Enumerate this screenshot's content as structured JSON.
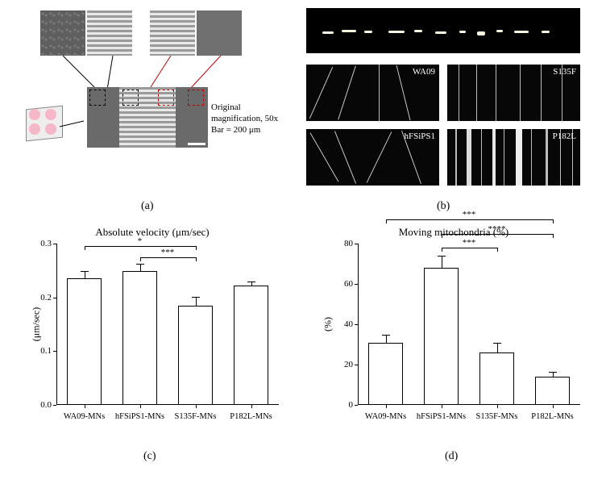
{
  "panel_a": {
    "caption": "(a)",
    "magnification_text_l1": "Original magnification, 50x",
    "magnification_text_l2": "Bar = 200 μm"
  },
  "panel_b": {
    "caption": "(b)",
    "kymo_labels": {
      "tl": "WA09",
      "tr": "S135F",
      "bl": "hFSiPS1",
      "br": "P182L"
    }
  },
  "chart_c": {
    "caption": "(c)",
    "title": "Absolute velocity (μm/sec)",
    "y_title": "(μm/sec)",
    "ylim": [
      0,
      0.3
    ],
    "ytick_step": 0.1,
    "categories": [
      "WA09-MNs",
      "hFSiPS1-MNs",
      "S135F-MNs",
      "P182L-MNs"
    ],
    "values": [
      0.235,
      0.249,
      0.185,
      0.222
    ],
    "errors": [
      0.014,
      0.013,
      0.016,
      0.008
    ],
    "bar_fill": "#ffffff",
    "bar_stroke": "#000000",
    "sig": [
      {
        "from": 0,
        "to": 2,
        "level": 0.295,
        "stars": "*"
      },
      {
        "from": 1,
        "to": 2,
        "level": 0.275,
        "stars": "***"
      }
    ]
  },
  "chart_d": {
    "caption": "(d)",
    "title": "Moving mitochondria (%)",
    "y_title": "(%)",
    "ylim": [
      0,
      80
    ],
    "ytick_step": 20,
    "categories": [
      "WA09-MNs",
      "hFSiPS1-MNs",
      "S135F-MNs",
      "P182L-MNs"
    ],
    "values": [
      31,
      68,
      26,
      14
    ],
    "errors": [
      4,
      6,
      5,
      2.5
    ],
    "bar_fill": "#ffffff",
    "bar_stroke": "#000000",
    "sig": [
      {
        "from": 0,
        "to": 3,
        "level": 92,
        "stars": "***"
      },
      {
        "from": 1,
        "to": 3,
        "level": 85,
        "stars": "****"
      },
      {
        "from": 1,
        "to": 2,
        "level": 78,
        "stars": "***"
      }
    ]
  },
  "colors": {
    "background": "#ffffff",
    "axis": "#000000",
    "text": "#000000",
    "microscopy_dark": "#050505",
    "microscopy_gray": "#6a6a6a",
    "chip_pink": "#f6b8c8"
  },
  "fonts": {
    "family": "serif",
    "title_size_pt": 13,
    "label_size_pt": 11,
    "tick_size_pt": 11
  }
}
